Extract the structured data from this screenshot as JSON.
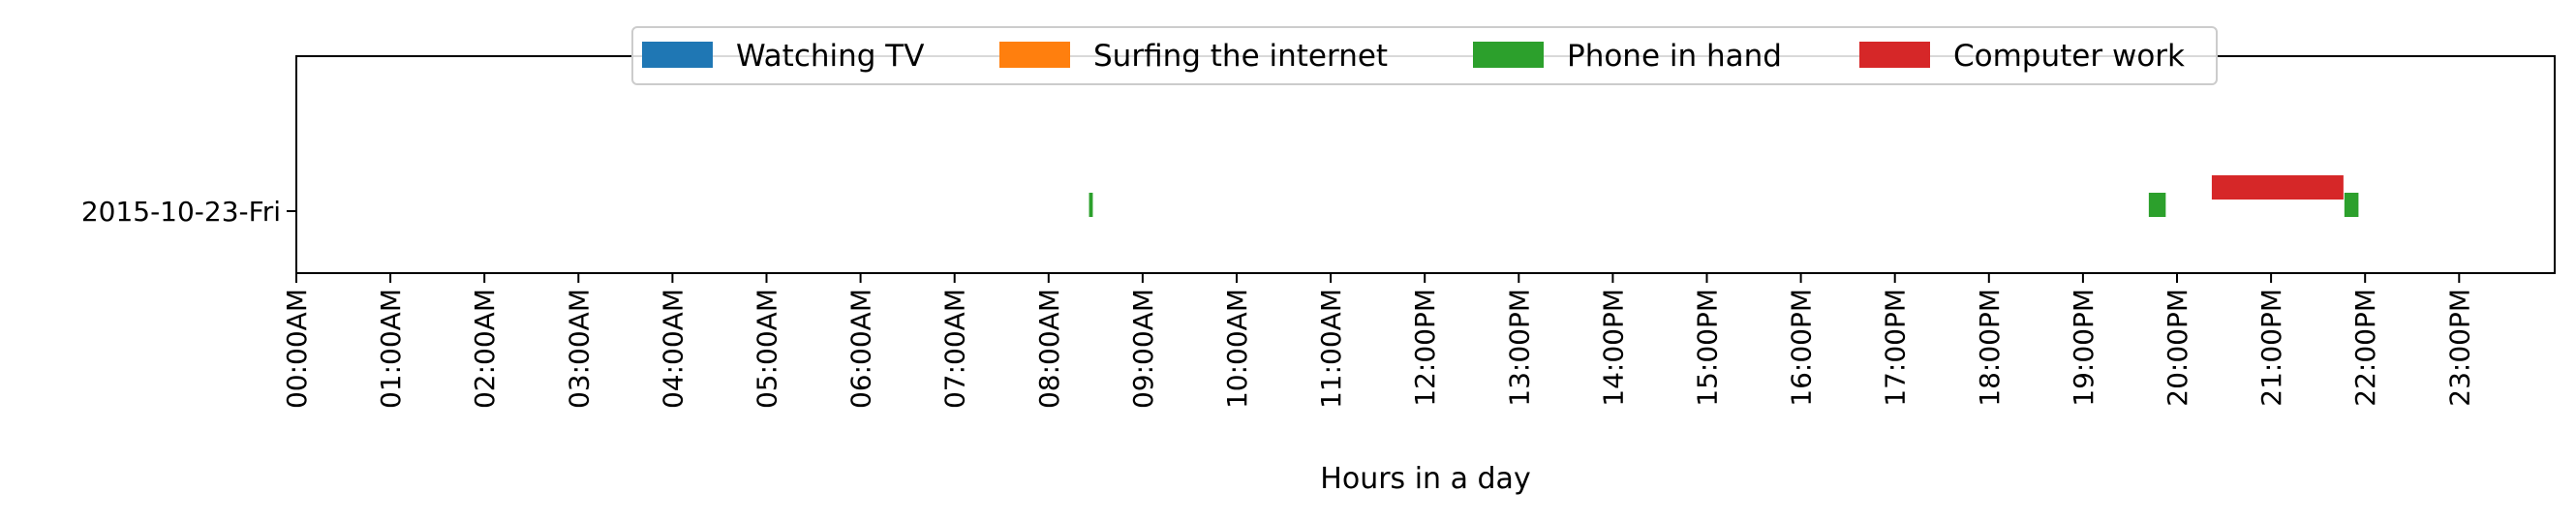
{
  "chart_data": {
    "type": "bar",
    "orientation": "horizontal-timeline",
    "title": "",
    "xlabel": "Hours in a day",
    "ylabel": "",
    "xlim": [
      0,
      24
    ],
    "x_ticks": [
      {
        "hour": 0,
        "label": "00:00AM"
      },
      {
        "hour": 1,
        "label": "01:00AM"
      },
      {
        "hour": 2,
        "label": "02:00AM"
      },
      {
        "hour": 3,
        "label": "03:00AM"
      },
      {
        "hour": 4,
        "label": "04:00AM"
      },
      {
        "hour": 5,
        "label": "05:00AM"
      },
      {
        "hour": 6,
        "label": "06:00AM"
      },
      {
        "hour": 7,
        "label": "07:00AM"
      },
      {
        "hour": 8,
        "label": "08:00AM"
      },
      {
        "hour": 9,
        "label": "09:00AM"
      },
      {
        "hour": 10,
        "label": "10:00AM"
      },
      {
        "hour": 11,
        "label": "11:00AM"
      },
      {
        "hour": 12,
        "label": "12:00PM"
      },
      {
        "hour": 13,
        "label": "13:00PM"
      },
      {
        "hour": 14,
        "label": "14:00PM"
      },
      {
        "hour": 15,
        "label": "15:00PM"
      },
      {
        "hour": 16,
        "label": "16:00PM"
      },
      {
        "hour": 17,
        "label": "17:00PM"
      },
      {
        "hour": 18,
        "label": "18:00PM"
      },
      {
        "hour": 19,
        "label": "19:00PM"
      },
      {
        "hour": 20,
        "label": "20:00PM"
      },
      {
        "hour": 21,
        "label": "21:00PM"
      },
      {
        "hour": 22,
        "label": "22:00PM"
      },
      {
        "hour": 23,
        "label": "23:00PM"
      }
    ],
    "categories": [
      "2015-10-23-Fri"
    ],
    "legend": {
      "position": "upper-center",
      "entries": [
        {
          "name": "Watching TV",
          "color": "#1f77b4"
        },
        {
          "name": "Surfing the internet",
          "color": "#ff7f0e"
        },
        {
          "name": "Phone in hand",
          "color": "#2ca02c"
        },
        {
          "name": "Computer work",
          "color": "#d62728"
        }
      ]
    },
    "series": [
      {
        "name": "Watching TV",
        "color": "#1f77b4",
        "segments": []
      },
      {
        "name": "Surfing the internet",
        "color": "#ff7f0e",
        "segments": []
      },
      {
        "name": "Phone in hand",
        "color": "#2ca02c",
        "segments": [
          {
            "category": "2015-10-23-Fri",
            "start": 8.43,
            "end": 8.47,
            "level": "low"
          },
          {
            "category": "2015-10-23-Fri",
            "start": 19.7,
            "end": 19.88,
            "level": "low"
          },
          {
            "category": "2015-10-23-Fri",
            "start": 21.78,
            "end": 21.93,
            "level": "low"
          }
        ]
      },
      {
        "name": "Computer work",
        "color": "#d62728",
        "segments": [
          {
            "category": "2015-10-23-Fri",
            "start": 20.37,
            "end": 21.77,
            "level": "high"
          }
        ]
      }
    ],
    "grid": false
  }
}
